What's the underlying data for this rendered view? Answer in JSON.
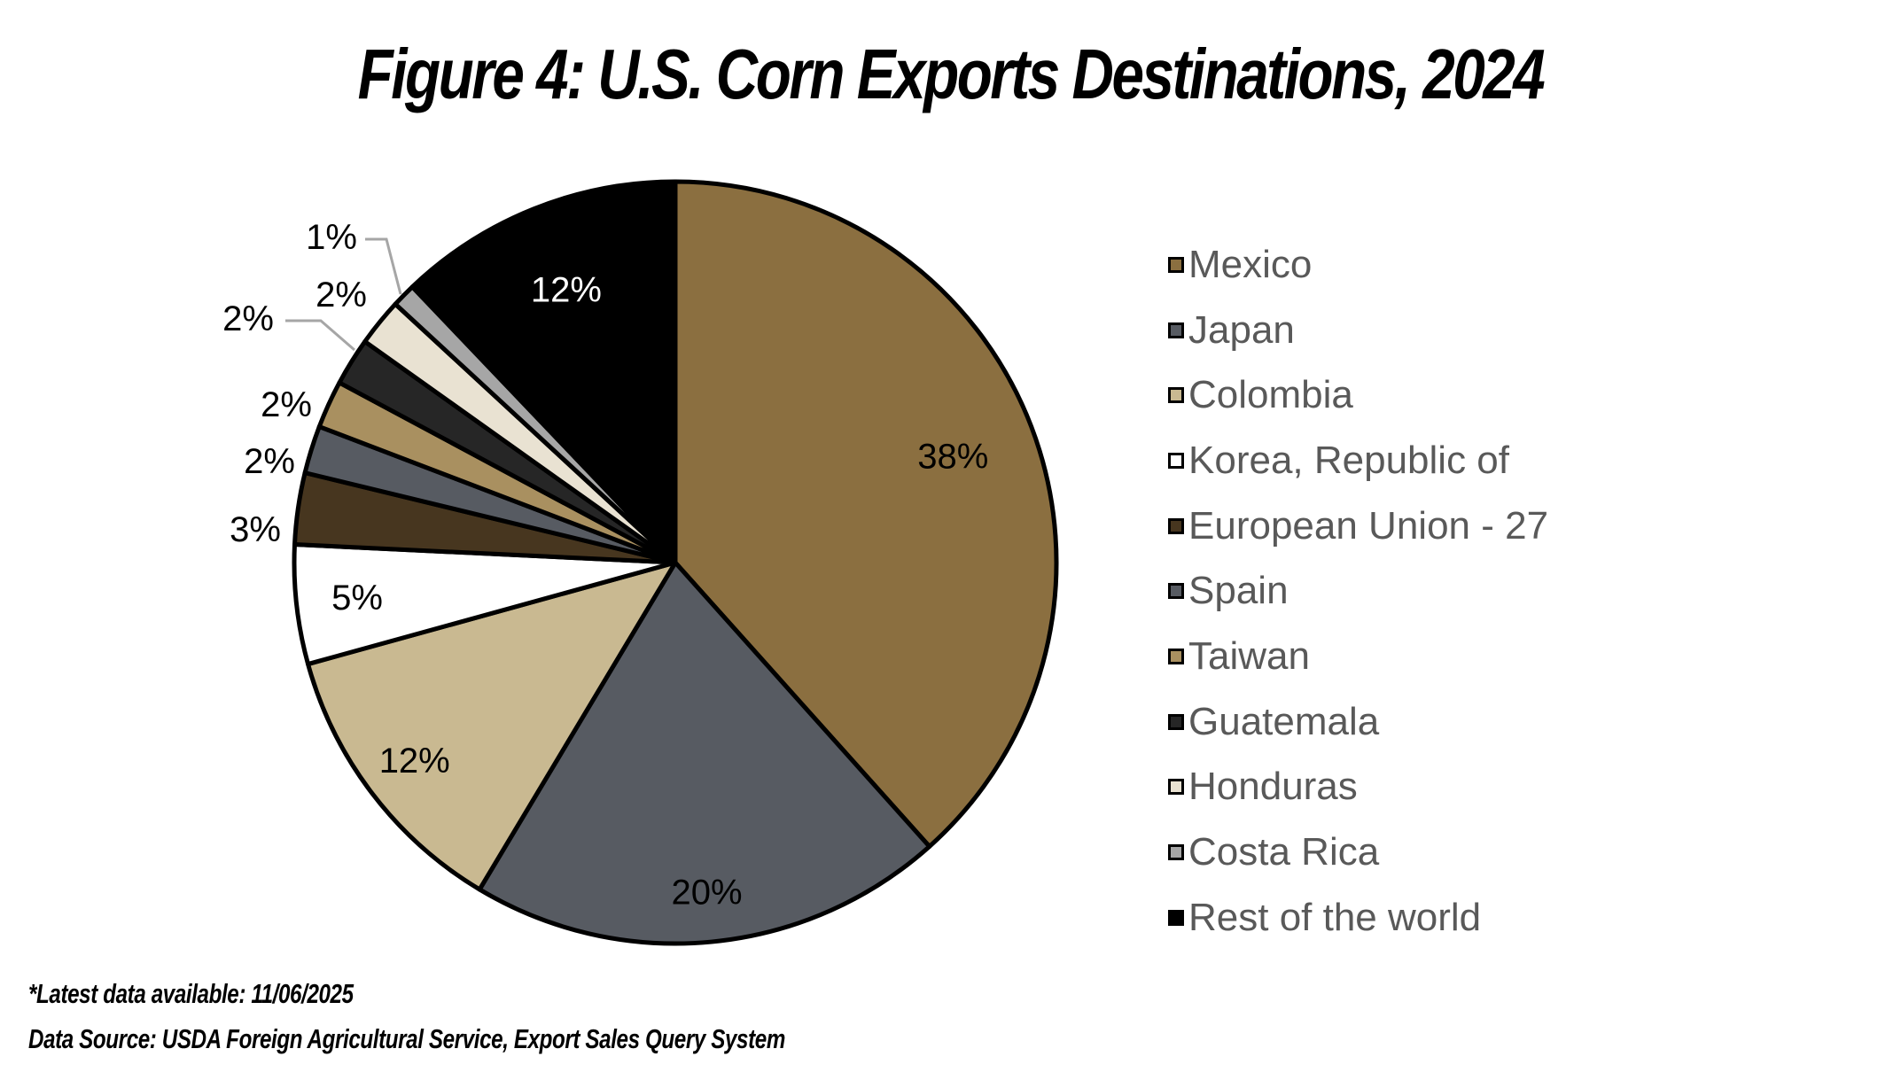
{
  "title": "Figure 4: U.S. Corn Exports Destinations, 2024",
  "footnotes": {
    "latest": "*Latest data available: 11/06/2025",
    "source": "Data Source: USDA Foreign Agricultural Service, Export Sales Query System"
  },
  "chart_data": {
    "type": "pie",
    "title": "Figure 4: U.S. Corn Exports Destinations, 2024",
    "legend_position": "right",
    "start_angle": "12 o'clock",
    "direction": "clockwise",
    "categories": [
      "Mexico",
      "Japan",
      "Colombia",
      "Korea, Republic of",
      "European Union - 27",
      "Spain",
      "Taiwan",
      "Guatemala",
      "Honduras",
      "Costa Rica",
      "Rest of the world"
    ],
    "values": [
      38,
      20,
      12,
      5,
      3,
      2,
      2,
      2,
      2,
      1,
      12
    ],
    "labels": [
      "38%",
      "20%",
      "12%",
      "5%",
      "3%",
      "2%",
      "2%",
      "2%",
      "2%",
      "1%",
      "12%"
    ],
    "colors": [
      "#8B6F40",
      "#575B62",
      "#C9B991",
      "#FFFFFF",
      "#47361F",
      "#575B62",
      "#A99060",
      "#262626",
      "#E9E2D2",
      "#A6A6A6",
      "#000000"
    ],
    "label_colors": [
      "#000000",
      "#000000",
      "#000000",
      "#000000",
      "#000000",
      "#000000",
      "#000000",
      "#000000",
      "#000000",
      "#000000",
      "#FFFFFF"
    ]
  }
}
